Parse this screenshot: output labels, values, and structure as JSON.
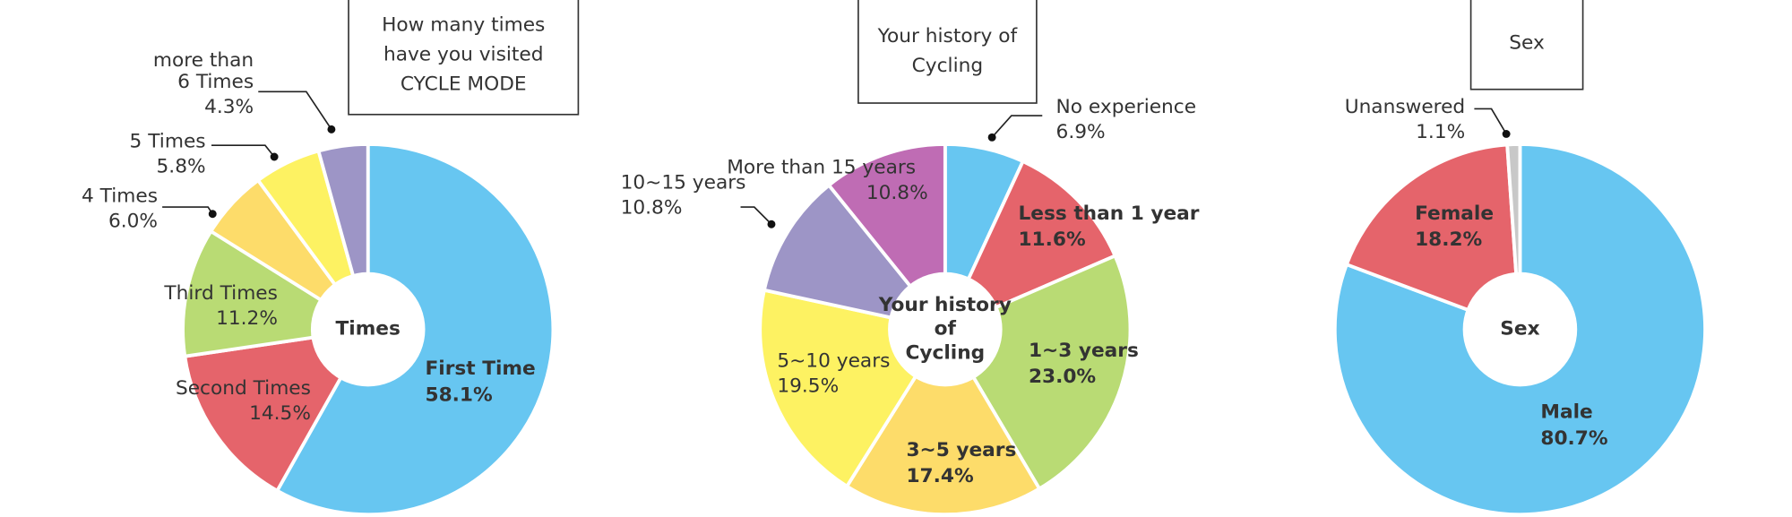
{
  "chart_data": [
    {
      "type": "pie",
      "title": "How many times have you visited CYCLE MODE",
      "center_label": "Times",
      "categories": [
        "First Time",
        "Second Times",
        "Third Times",
        "4 Times",
        "5 Times",
        "more than 6 Times"
      ],
      "values": [
        58.1,
        14.5,
        11.2,
        6.0,
        5.8,
        4.3
      ],
      "value_labels": [
        "58.1%",
        "14.5%",
        "11.2%",
        "6.0%",
        "5.8%",
        "4.3%"
      ],
      "colors": [
        "#67c6f1",
        "#e5646b",
        "#b9db74",
        "#fddc6a",
        "#fdf262",
        "#9d95c6"
      ]
    },
    {
      "type": "pie",
      "title": "Your history of Cycling",
      "center_label": "Your history of Cycling",
      "categories": [
        "No experience",
        "Less than 1 year",
        "1~3 years",
        "3~5 years",
        "5~10 years",
        "10~15 years",
        "More than 15 years"
      ],
      "values": [
        6.9,
        11.6,
        23.0,
        17.4,
        19.5,
        10.8,
        10.8
      ],
      "value_labels": [
        "6.9%",
        "11.6%",
        "23.0%",
        "17.4%",
        "19.5%",
        "10.8%",
        "10.8%"
      ],
      "colors": [
        "#67c6f1",
        "#e5646b",
        "#b9db74",
        "#fddc6a",
        "#fdf262",
        "#9d95c6",
        "#bf6cb4"
      ]
    },
    {
      "type": "pie",
      "title": "Sex",
      "center_label": "Sex",
      "categories": [
        "Male",
        "Female",
        "Unanswered"
      ],
      "values": [
        80.7,
        18.2,
        1.1
      ],
      "value_labels": [
        "80.7%",
        "18.2%",
        "1.1%"
      ],
      "colors": [
        "#67c6f1",
        "#e5646b",
        "#c8c8c8"
      ]
    }
  ]
}
